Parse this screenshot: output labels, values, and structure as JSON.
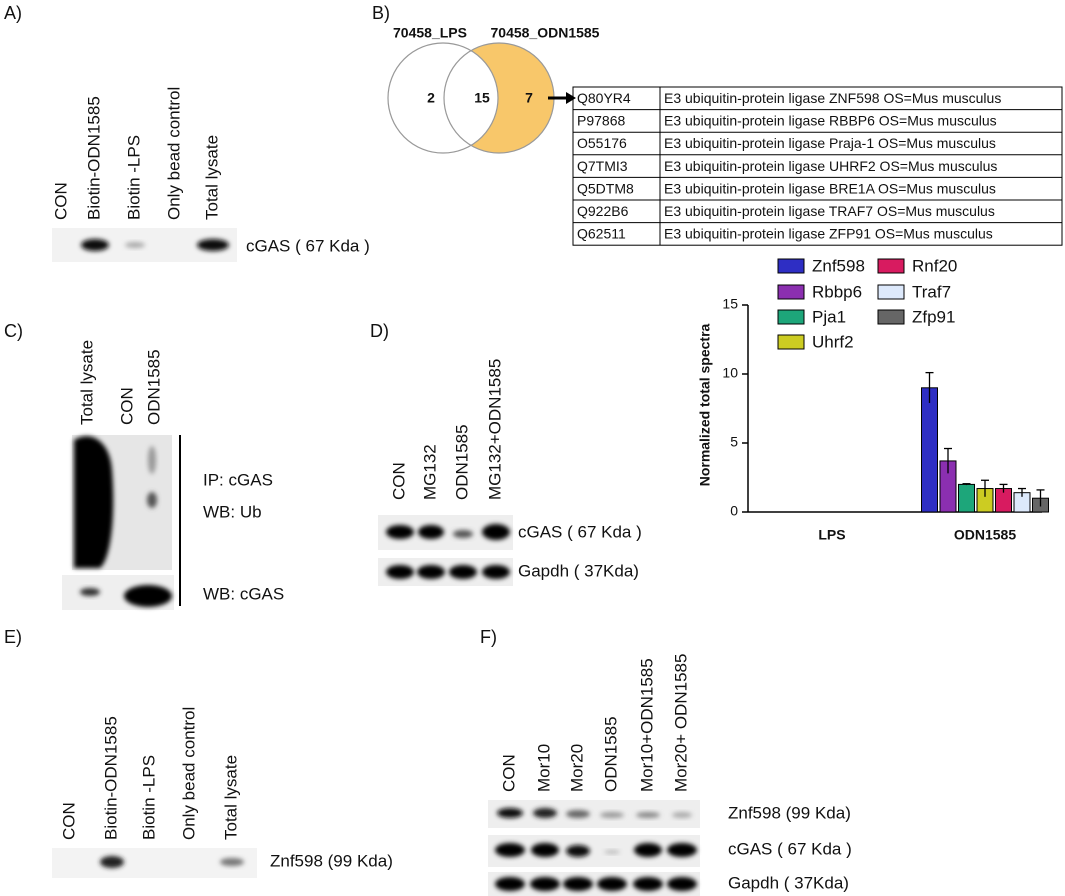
{
  "panels": {
    "a": {
      "label": "A)",
      "lanes": [
        "CON",
        "Biotin-ODN1585",
        "Biotin -LPS",
        "Only bead control",
        "Total lysate"
      ],
      "band_label": "cGAS ( 67 Kda )"
    },
    "b": {
      "label": "B)",
      "venn": {
        "left_name": "70458_LPS",
        "right_name": "70458_ODN1585",
        "left_only": 2,
        "overlap": 15,
        "right_only": 7
      },
      "table": [
        [
          "Q80YR4",
          "E3 ubiquitin-protein ligase ZNF598 OS=Mus musculus"
        ],
        [
          "P97868",
          "E3 ubiquitin-protein ligase RBBP6 OS=Mus musculus"
        ],
        [
          "O55176",
          "E3 ubiquitin-protein ligase Praja-1 OS=Mus musculus"
        ],
        [
          "Q7TMI3",
          "E3 ubiquitin-protein ligase UHRF2 OS=Mus musculus"
        ],
        [
          "Q5DTM8",
          "E3 ubiquitin-protein ligase BRE1A OS=Mus musculus"
        ],
        [
          "Q922B6",
          "E3 ubiquitin-protein ligase TRAF7 OS=Mus musculus"
        ],
        [
          "Q62511",
          "E3 ubiquitin-protein ligase ZFP91 OS=Mus musculus"
        ]
      ]
    },
    "c": {
      "label": "C)",
      "lanes": [
        "Total lysate",
        "CON",
        "ODN1585"
      ],
      "annotations": [
        "IP: cGAS",
        "WB: Ub",
        "WB: cGAS"
      ]
    },
    "d": {
      "label": "D)",
      "lanes": [
        "CON",
        "MG132",
        "ODN1585",
        "MG132+ODN1585"
      ],
      "band_labels": [
        "cGAS ( 67 Kda )",
        "Gapdh ( 37Kda)"
      ]
    },
    "e": {
      "label": "E)",
      "lanes": [
        "CON",
        "Biotin-ODN1585",
        "Biotin -LPS",
        "Only bead control",
        "Total lysate"
      ],
      "band_label": "Znf598 (99 Kda)"
    },
    "f": {
      "label": "F)",
      "lanes": [
        "CON",
        "Mor10",
        "Mor20",
        "ODN1585",
        "Mor10+ODN1585",
        "Mor20+ ODN1585"
      ],
      "band_labels": [
        "Znf598 (99 Kda)",
        "cGAS ( 67 Kda )",
        "Gapdh ( 37Kda)"
      ]
    }
  },
  "chart_data": {
    "type": "bar",
    "y_label": "Normalized total spectra",
    "categories": [
      "LPS",
      "ODN1585"
    ],
    "series": [
      {
        "name": "Znf598",
        "color": "#2e2ec4",
        "values": [
          0,
          9
        ],
        "errors": [
          0,
          1.1
        ]
      },
      {
        "name": "Rbbp6",
        "color": "#8b2fb0",
        "values": [
          0,
          3.7
        ],
        "errors": [
          0,
          0.9
        ]
      },
      {
        "name": "Pja1",
        "color": "#1da67a",
        "values": [
          0,
          2
        ],
        "errors": [
          0,
          0.05
        ]
      },
      {
        "name": "Uhrf2",
        "color": "#cccc22",
        "values": [
          0,
          1.7
        ],
        "errors": [
          0,
          0.6
        ]
      },
      {
        "name": "Rnf20",
        "color": "#d81b60",
        "values": [
          0,
          1.7
        ],
        "errors": [
          0,
          0.3
        ]
      },
      {
        "name": "Traf7",
        "color": "#dde9fb",
        "values": [
          0,
          1.4
        ],
        "errors": [
          0,
          0.3
        ]
      },
      {
        "name": "Zfp91",
        "color": "#666666",
        "values": [
          0,
          1.0
        ],
        "errors": [
          0,
          0.6
        ]
      }
    ],
    "ylim": [
      0,
      15
    ],
    "yticks": [
      0,
      5,
      10,
      15
    ]
  }
}
